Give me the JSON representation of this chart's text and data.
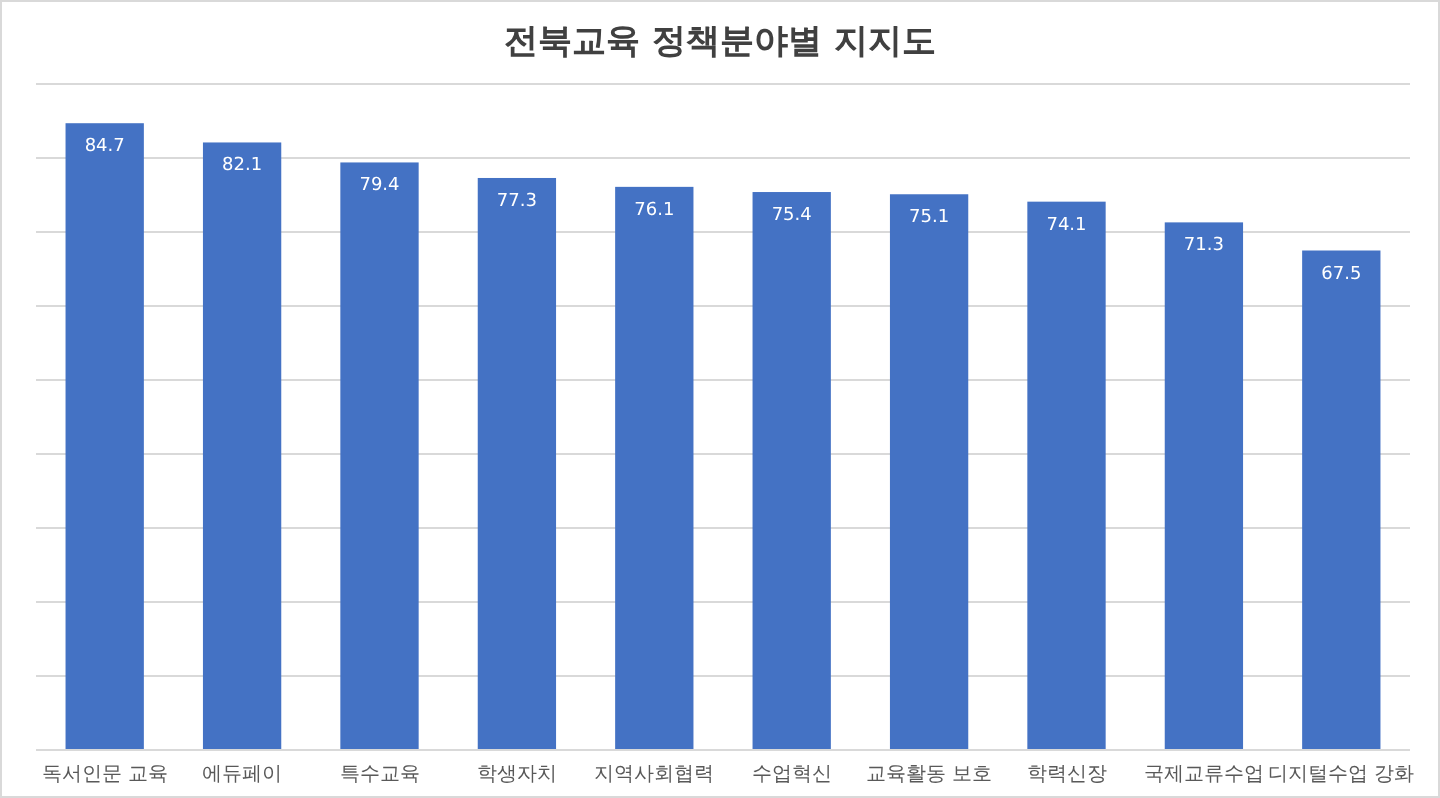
{
  "chart_data": {
    "type": "bar",
    "title": "전북교육 정책분야별 지지도",
    "categories": [
      "독서인문 교육",
      "에듀페이",
      "특수교육",
      "학생자치",
      "지역사회협력",
      "수업혁신",
      "교육활동 보호",
      "학력신장",
      "국제교류수업",
      "디지털수업 강화"
    ],
    "values": [
      84.7,
      82.1,
      79.4,
      77.3,
      76.1,
      75.4,
      75.1,
      74.1,
      71.3,
      67.5
    ],
    "color": "#4472c4",
    "data_labels": true,
    "ylim": [
      0,
      90
    ],
    "yticks": [
      {
        "value": 0,
        "label": null
      },
      {
        "value": 10,
        "label": null
      },
      {
        "value": 20,
        "label": null
      },
      {
        "value": 30,
        "label": null
      },
      {
        "value": 40,
        "label": null
      },
      {
        "value": 50,
        "label": null
      },
      {
        "value": 60,
        "label": null
      },
      {
        "value": 70,
        "label": null
      },
      {
        "value": 80,
        "label": null
      },
      {
        "value": 90,
        "label": null
      }
    ],
    "grid": "y",
    "tick_labels": "x"
  }
}
